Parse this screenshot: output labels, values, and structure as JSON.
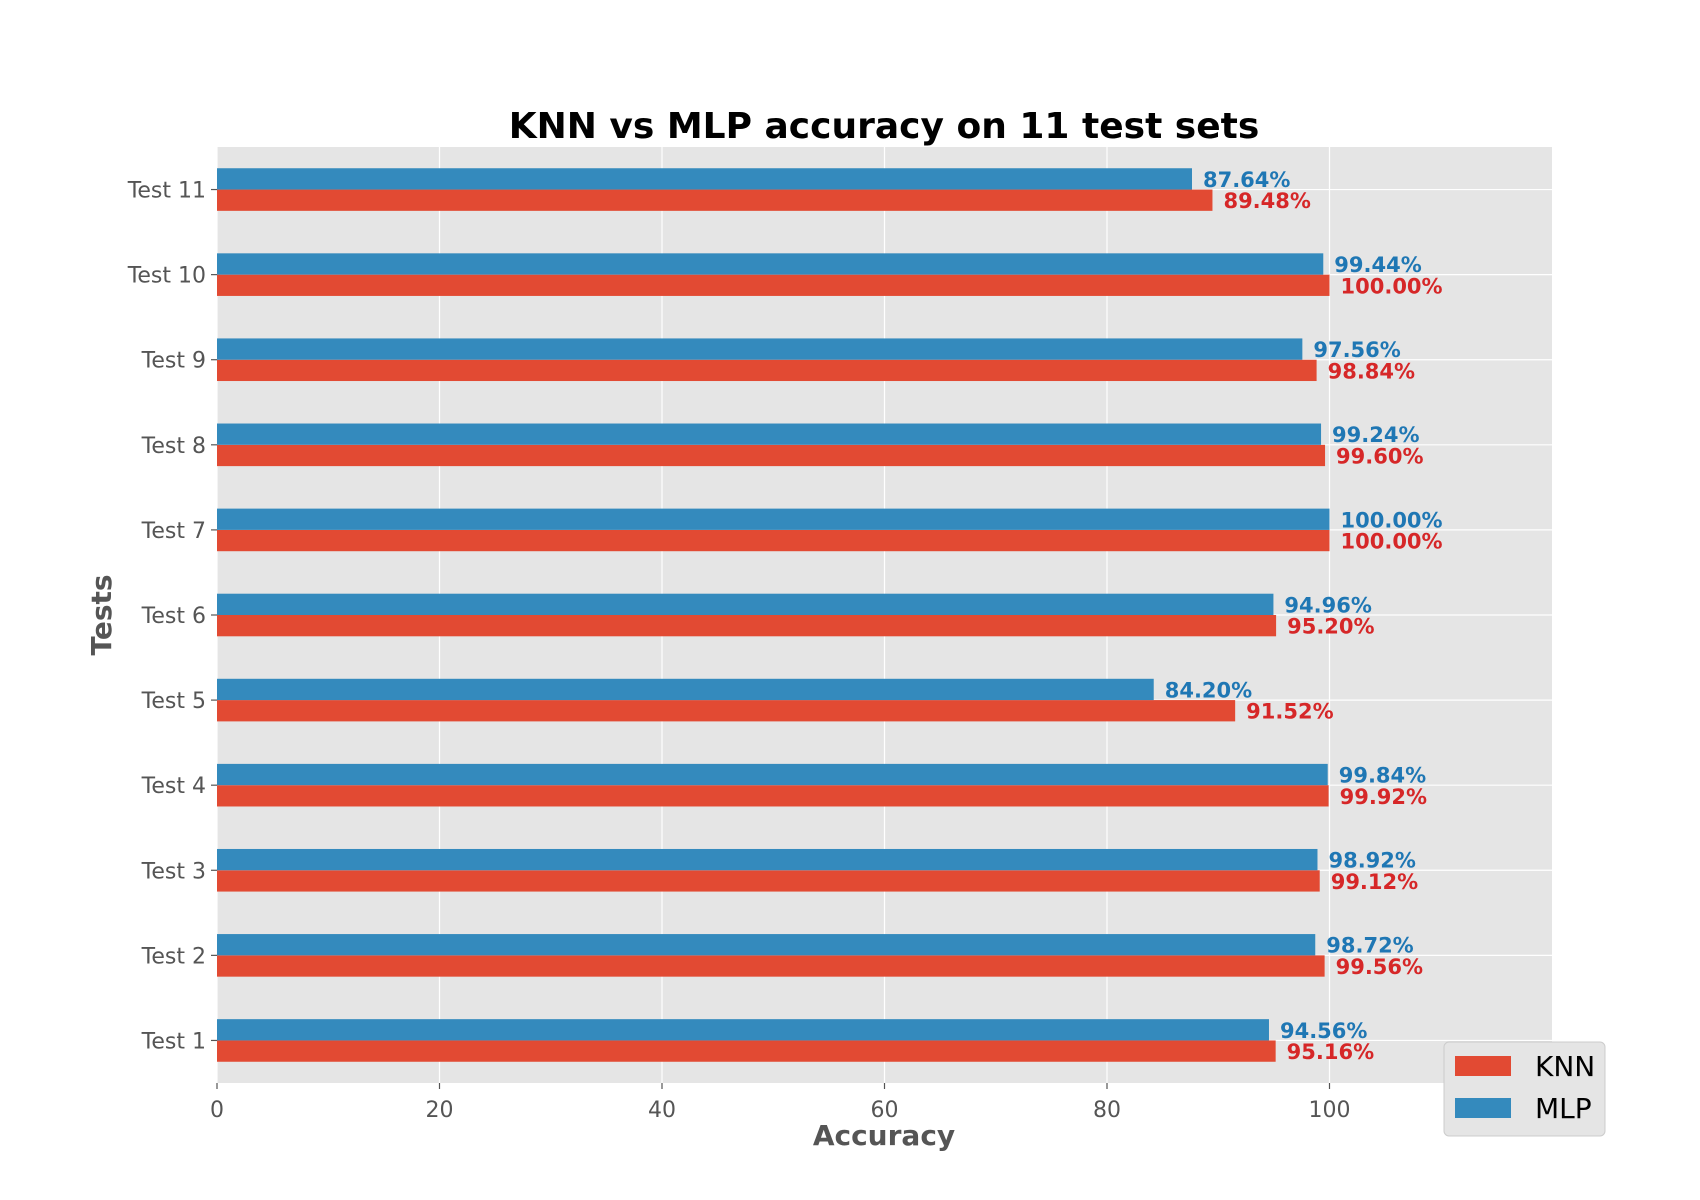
{
  "chart_data": {
    "type": "bar",
    "orientation": "horizontal",
    "title": "KNN vs MLP accuracy on 11 test sets",
    "xlabel": "Accuracy",
    "ylabel": "Tests",
    "xlim": [
      0,
      120
    ],
    "xticks": [
      0,
      20,
      40,
      60,
      80,
      100
    ],
    "grid": true,
    "legend_position": "bottom-right",
    "categories": [
      "Test 1",
      "Test 2",
      "Test 3",
      "Test 4",
      "Test 5",
      "Test 6",
      "Test 7",
      "Test 8",
      "Test 9",
      "Test 10",
      "Test 11"
    ],
    "series": [
      {
        "name": "KNN",
        "color": "#E24A33",
        "label_color": "#D62728",
        "values": [
          95.16,
          99.56,
          99.12,
          99.92,
          91.52,
          95.2,
          100.0,
          99.6,
          98.84,
          100.0,
          89.48
        ],
        "labels": [
          "95.16%",
          "99.56%",
          "99.12%",
          "99.92%",
          "91.52%",
          "95.20%",
          "100.00%",
          "99.60%",
          "98.84%",
          "100.00%",
          "89.48%"
        ]
      },
      {
        "name": "MLP",
        "color": "#348ABD",
        "label_color": "#1F77B4",
        "values": [
          94.56,
          98.72,
          98.92,
          99.84,
          84.2,
          94.96,
          100.0,
          99.24,
          97.56,
          99.44,
          87.64
        ],
        "labels": [
          "94.56%",
          "98.72%",
          "98.92%",
          "99.84%",
          "84.20%",
          "94.96%",
          "100.00%",
          "99.24%",
          "97.56%",
          "99.44%",
          "87.64%"
        ]
      }
    ]
  }
}
